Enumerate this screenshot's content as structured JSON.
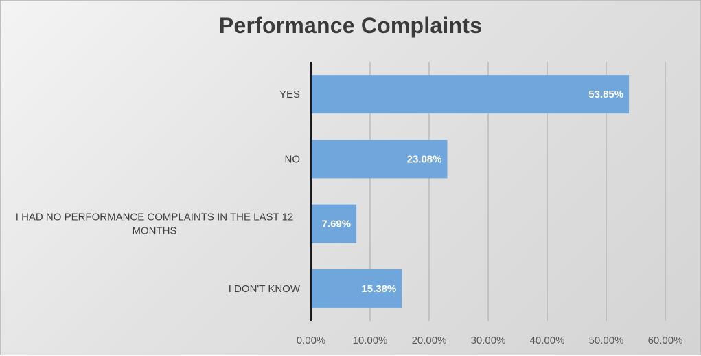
{
  "chart_data": {
    "type": "bar",
    "orientation": "horizontal",
    "title": "Performance Complaints",
    "categories": [
      "YES",
      "NO",
      "I HAD NO PERFORMANCE COMPLAINTS IN THE LAST 12 MONTHS",
      "I DON'T KNOW"
    ],
    "category_label_lines": [
      [
        "YES"
      ],
      [
        "NO"
      ],
      [
        "I HAD NO PERFORMANCE COMPLAINTS IN THE LAST 12",
        "MONTHS"
      ],
      [
        "I DON'T KNOW"
      ]
    ],
    "values": [
      53.85,
      23.08,
      7.69,
      15.38
    ],
    "data_labels": [
      "53.85%",
      "23.08%",
      "7.69%",
      "15.38%"
    ],
    "xlim": [
      0,
      60
    ],
    "xticks": [
      0,
      10,
      20,
      30,
      40,
      50,
      60
    ],
    "xtick_labels": [
      "0.00%",
      "10.00%",
      "20.00%",
      "30.00%",
      "40.00%",
      "50.00%",
      "60.00%"
    ],
    "grid": "vertical",
    "bar_color": "#6fa7dc",
    "gridline_color": "#a6a6a6",
    "axis_color": "#1a1a1a"
  }
}
